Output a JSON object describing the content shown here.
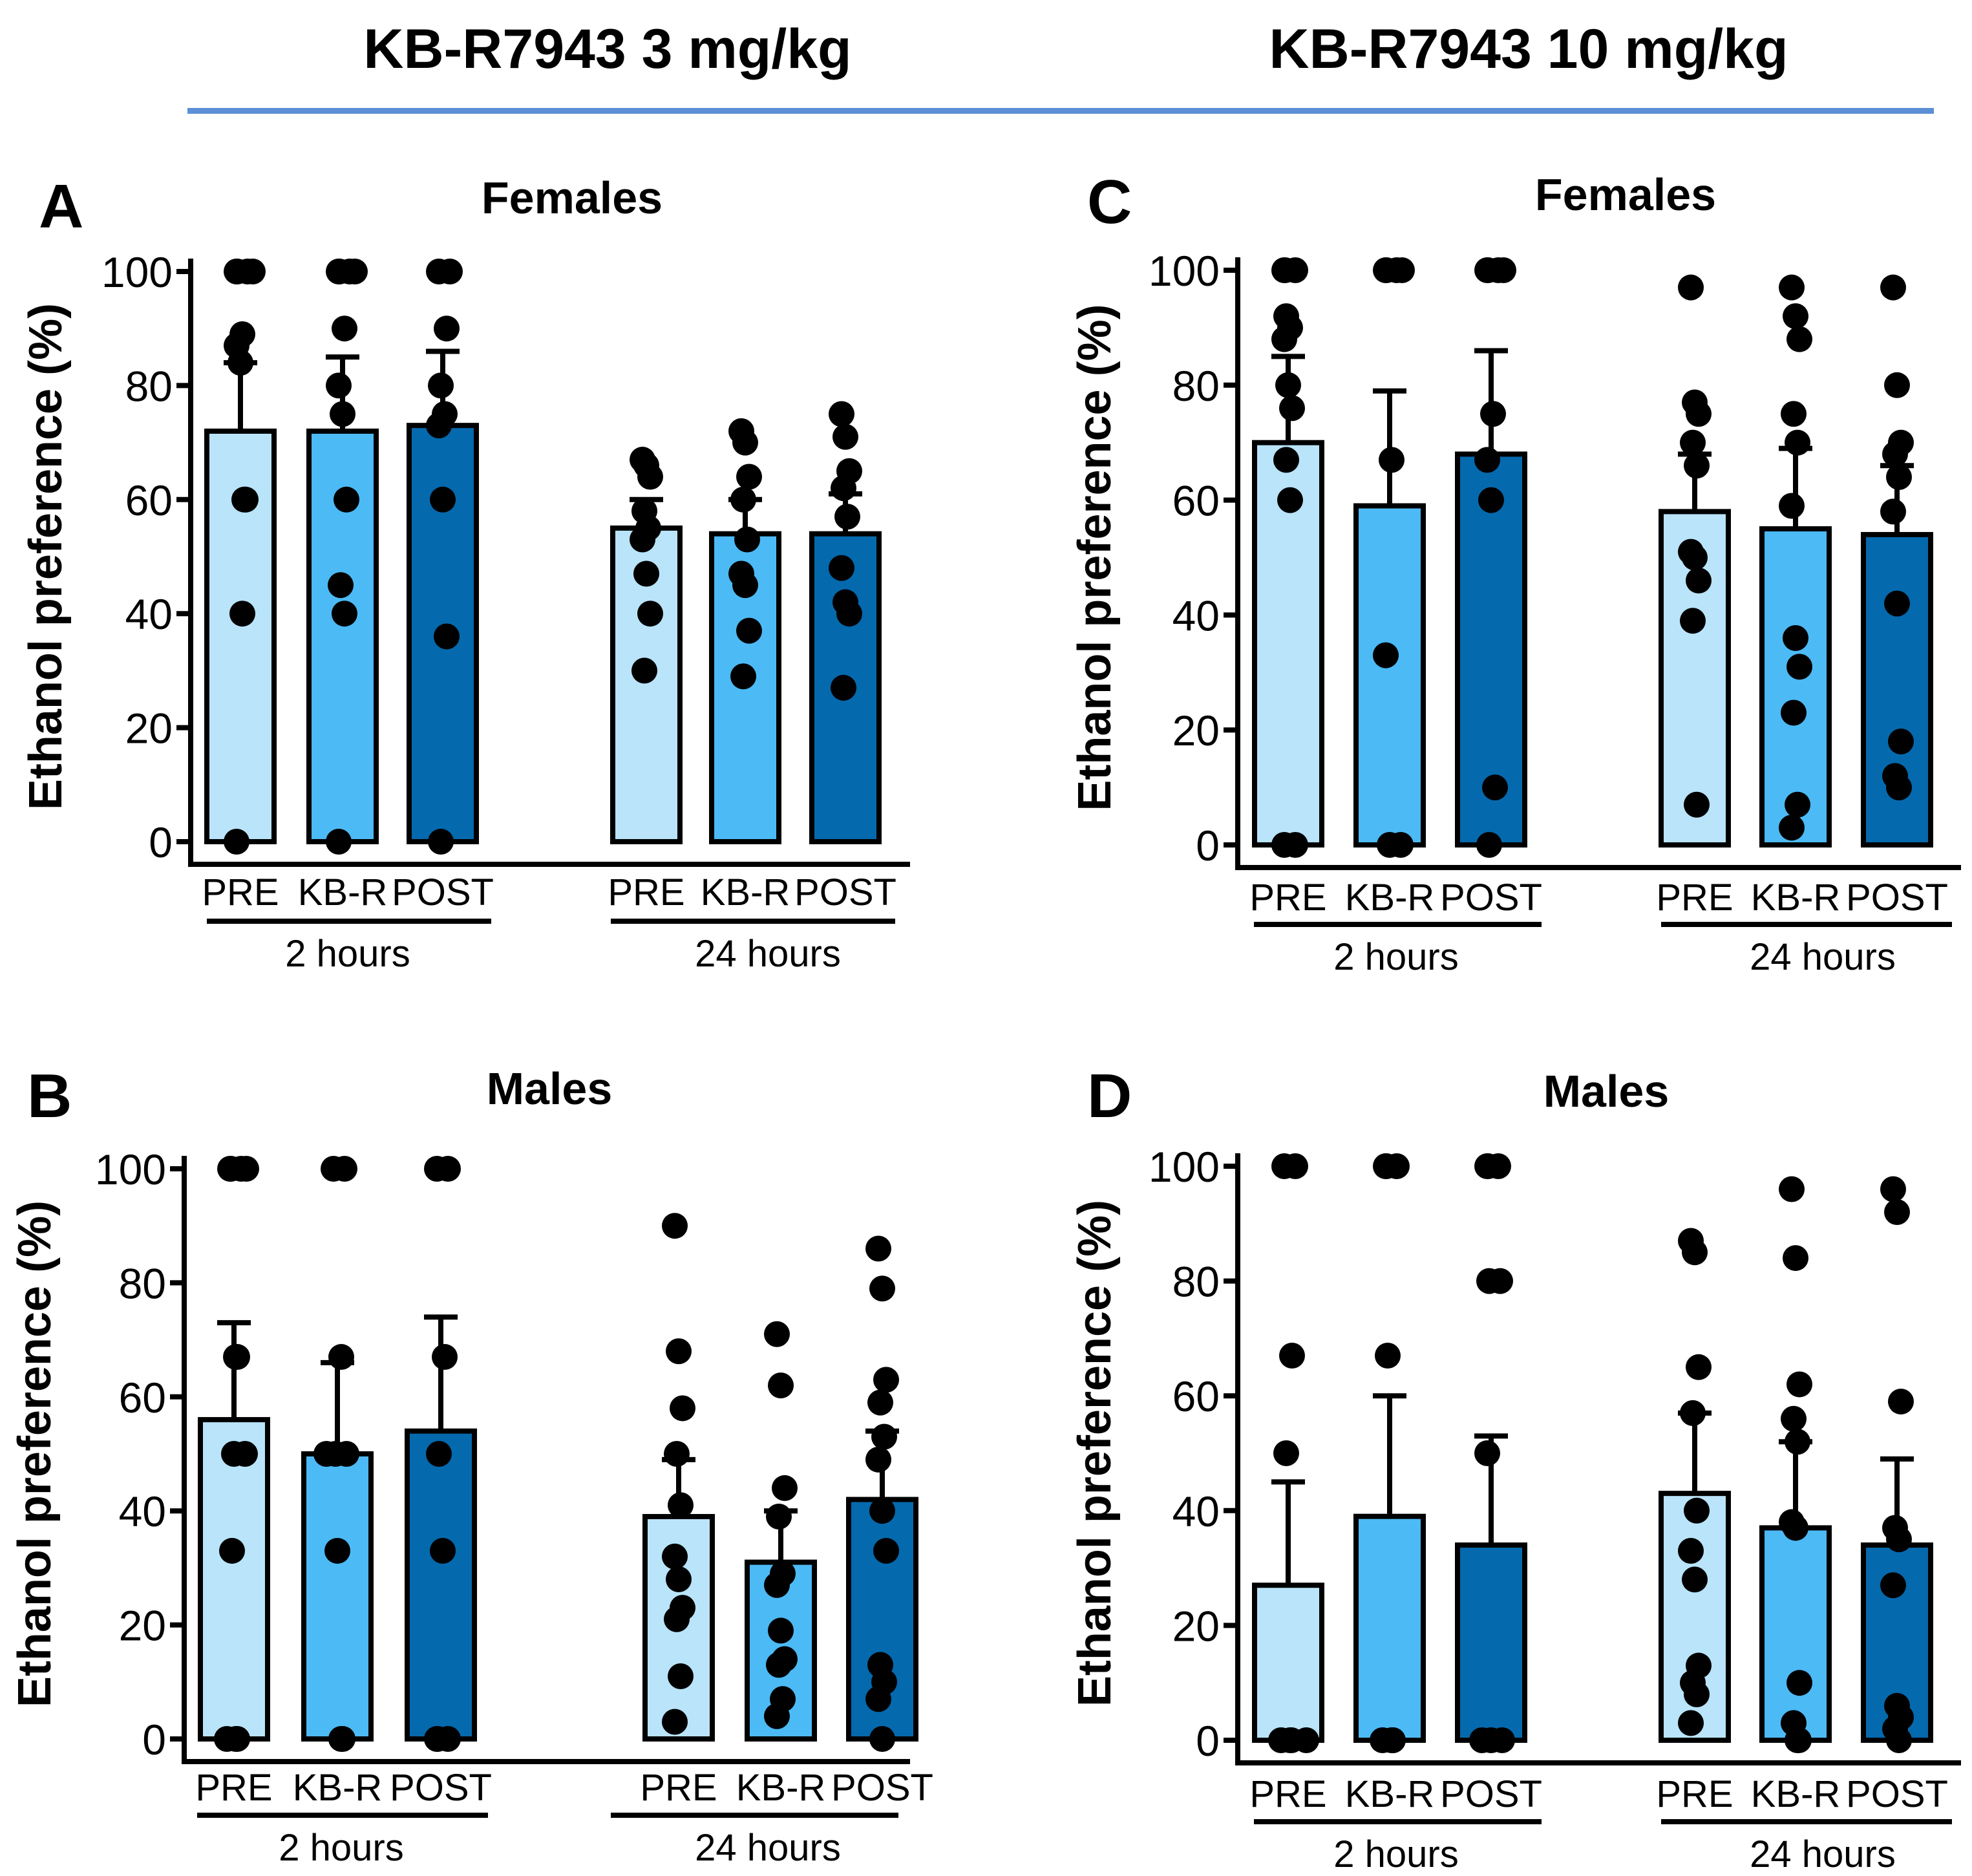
{
  "headers": {
    "left": "KB-R7943 3 mg/kg",
    "right": "KB-R7943 10 mg/kg",
    "rule_color": "#5b8fd6"
  },
  "colors": {
    "PRE": "#b9e4fa",
    "KB-R": "#4cbaf5",
    "POST": "#0569ad",
    "points": "#000000"
  },
  "axis_label": "Ethanol preference (%)",
  "chart_data": [
    {
      "panel": "A",
      "type": "bar",
      "title": "Females",
      "ylabel": "Ethanol preference (%)",
      "ylim": [
        0,
        100
      ],
      "yticks": [
        0,
        20,
        40,
        60,
        80,
        100
      ],
      "groups": [
        {
          "label": "2 hours",
          "bars": [
            {
              "category": "PRE",
              "mean": 72,
              "error": 12,
              "points": [
                100,
                100,
                100,
                100,
                89,
                87,
                84,
                60,
                60,
                40,
                0
              ]
            },
            {
              "category": "KB-R",
              "mean": 72,
              "error": 13,
              "points": [
                100,
                100,
                100,
                100,
                90,
                80,
                75,
                60,
                45,
                40,
                0
              ]
            },
            {
              "category": "POST",
              "mean": 73,
              "error": 13,
              "points": [
                100,
                100,
                90,
                80,
                75,
                73,
                60,
                36,
                0
              ]
            }
          ]
        },
        {
          "label": "24 hours",
          "bars": [
            {
              "category": "PRE",
              "mean": 55,
              "error": 5,
              "points": [
                67,
                66,
                64,
                58,
                55,
                53,
                47,
                40,
                30
              ]
            },
            {
              "category": "KB-R",
              "mean": 54,
              "error": 6,
              "points": [
                72,
                70,
                64,
                60,
                53,
                47,
                45,
                37,
                29
              ]
            },
            {
              "category": "POST",
              "mean": 54,
              "error": 7,
              "points": [
                75,
                71,
                65,
                62,
                57,
                48,
                42,
                40,
                27
              ]
            }
          ]
        }
      ]
    },
    {
      "panel": "B",
      "type": "bar",
      "title": "Males",
      "ylabel": "Ethanol preference (%)",
      "ylim": [
        0,
        100
      ],
      "yticks": [
        0,
        20,
        40,
        60,
        80,
        100
      ],
      "groups": [
        {
          "label": "2 hours",
          "bars": [
            {
              "category": "PRE",
              "mean": 56,
              "error": 17,
              "points": [
                100,
                100,
                100,
                100,
                67,
                67,
                50,
                50,
                33,
                0,
                0,
                0
              ]
            },
            {
              "category": "KB-R",
              "mean": 50,
              "error": 16,
              "points": [
                100,
                100,
                67,
                50,
                50,
                50,
                33,
                0,
                0
              ]
            },
            {
              "category": "POST",
              "mean": 54,
              "error": 20,
              "points": [
                100,
                100,
                67,
                50,
                33,
                0,
                0,
                0
              ]
            }
          ]
        },
        {
          "label": "24 hours",
          "bars": [
            {
              "category": "PRE",
              "mean": 39,
              "error": 10,
              "points": [
                90,
                68,
                58,
                50,
                41,
                32,
                28,
                23,
                21,
                11,
                3
              ]
            },
            {
              "category": "KB-R",
              "mean": 31,
              "error": 9,
              "points": [
                71,
                62,
                44,
                39,
                29,
                27,
                19,
                14,
                13,
                7,
                4
              ]
            },
            {
              "category": "POST",
              "mean": 42,
              "error": 12,
              "points": [
                86,
                79,
                63,
                59,
                53,
                49,
                40,
                33,
                13,
                10,
                7,
                0
              ]
            }
          ]
        }
      ]
    },
    {
      "panel": "C",
      "type": "bar",
      "title": "Females",
      "ylabel": "Ethanol preference (%)",
      "ylim": [
        0,
        100
      ],
      "yticks": [
        0,
        20,
        40,
        60,
        80,
        100
      ],
      "groups": [
        {
          "label": "2 hours",
          "bars": [
            {
              "category": "PRE",
              "mean": 70,
              "error": 15,
              "points": [
                100,
                100,
                100,
                92,
                90,
                88,
                80,
                76,
                67,
                60,
                0,
                0
              ]
            },
            {
              "category": "KB-R",
              "mean": 59,
              "error": 20,
              "points": [
                100,
                100,
                100,
                100,
                67,
                33,
                0,
                0
              ]
            },
            {
              "category": "POST",
              "mean": 68,
              "error": 18,
              "points": [
                100,
                100,
                100,
                100,
                75,
                67,
                60,
                10,
                0
              ]
            }
          ]
        },
        {
          "label": "24 hours",
          "bars": [
            {
              "category": "PRE",
              "mean": 58,
              "error": 10,
              "points": [
                97,
                77,
                75,
                70,
                66,
                51,
                50,
                46,
                39,
                7
              ]
            },
            {
              "category": "KB-R",
              "mean": 55,
              "error": 14,
              "points": [
                97,
                92,
                88,
                75,
                70,
                59,
                36,
                31,
                23,
                7,
                3
              ]
            },
            {
              "category": "POST",
              "mean": 54,
              "error": 12,
              "points": [
                97,
                80,
                70,
                68,
                64,
                58,
                42,
                18,
                12,
                10
              ]
            }
          ]
        }
      ]
    },
    {
      "panel": "D",
      "type": "bar",
      "title": "Males",
      "ylabel": "Ethanol preference (%)",
      "ylim": [
        0,
        100
      ],
      "yticks": [
        0,
        20,
        40,
        60,
        80,
        100
      ],
      "groups": [
        {
          "label": "2 hours",
          "bars": [
            {
              "category": "PRE",
              "mean": 27,
              "error": 18,
              "points": [
                100,
                100,
                67,
                50,
                0,
                0,
                0,
                0
              ]
            },
            {
              "category": "KB-R",
              "mean": 39,
              "error": 21,
              "points": [
                100,
                100,
                100,
                67,
                0,
                0,
                0
              ]
            },
            {
              "category": "POST",
              "mean": 34,
              "error": 19,
              "points": [
                100,
                100,
                100,
                80,
                80,
                50,
                0,
                0,
                0
              ]
            }
          ]
        },
        {
          "label": "24 hours",
          "bars": [
            {
              "category": "PRE",
              "mean": 43,
              "error": 14,
              "points": [
                87,
                85,
                65,
                57,
                40,
                33,
                28,
                13,
                10,
                8,
                3
              ]
            },
            {
              "category": "KB-R",
              "mean": 37,
              "error": 15,
              "points": [
                96,
                84,
                62,
                56,
                52,
                38,
                37,
                10,
                3,
                0,
                0
              ]
            },
            {
              "category": "POST",
              "mean": 34,
              "error": 15,
              "points": [
                96,
                92,
                59,
                37,
                35,
                27,
                6,
                4,
                2,
                0
              ]
            }
          ]
        }
      ]
    }
  ]
}
